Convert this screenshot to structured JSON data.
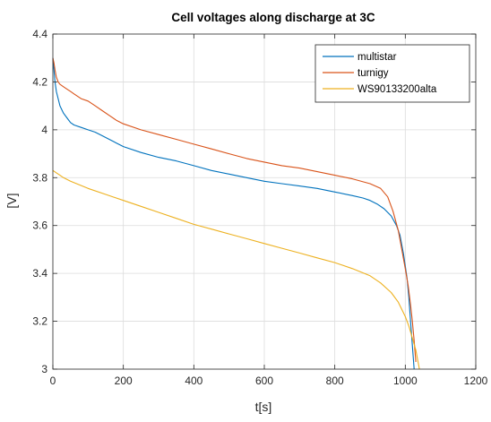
{
  "chart_data": {
    "type": "line",
    "title": "Cell voltages along discharge at 3C",
    "xlabel": "t[s]",
    "ylabel": "[V]",
    "xlim": [
      0,
      1200
    ],
    "ylim": [
      3,
      4.4
    ],
    "xticks": [
      0,
      200,
      400,
      600,
      800,
      1000,
      1200
    ],
    "yticks": [
      3,
      3.2,
      3.4,
      3.6,
      3.8,
      4,
      4.2,
      4.4
    ],
    "xtick_labels": [
      "0",
      "200",
      "400",
      "600",
      "800",
      "1000",
      "1200"
    ],
    "ytick_labels": [
      "3",
      "3.2",
      "3.4",
      "3.6",
      "3.8",
      "4",
      "4.2",
      "4.4"
    ],
    "grid": true,
    "legend_position": "top-right",
    "series": [
      {
        "name": "multistar",
        "color": "#0072BD",
        "x": [
          0,
          3,
          6,
          10,
          15,
          20,
          30,
          40,
          50,
          60,
          80,
          100,
          120,
          140,
          160,
          180,
          200,
          250,
          300,
          350,
          400,
          450,
          500,
          550,
          600,
          650,
          700,
          750,
          800,
          850,
          880,
          900,
          920,
          940,
          960,
          975,
          985,
          995,
          1005,
          1010,
          1015,
          1020,
          1025
        ],
        "y": [
          4.3,
          4.25,
          4.2,
          4.16,
          4.13,
          4.1,
          4.07,
          4.05,
          4.03,
          4.02,
          4.01,
          4.0,
          3.99,
          3.975,
          3.96,
          3.945,
          3.93,
          3.905,
          3.885,
          3.87,
          3.85,
          3.83,
          3.815,
          3.8,
          3.785,
          3.775,
          3.765,
          3.755,
          3.74,
          3.725,
          3.715,
          3.705,
          3.69,
          3.67,
          3.64,
          3.6,
          3.56,
          3.48,
          3.38,
          3.3,
          3.2,
          3.1,
          3.0
        ]
      },
      {
        "name": "turnigy",
        "color": "#D95319",
        "x": [
          0,
          3,
          6,
          10,
          15,
          20,
          30,
          40,
          50,
          60,
          80,
          100,
          120,
          140,
          160,
          180,
          200,
          250,
          300,
          350,
          400,
          450,
          500,
          550,
          600,
          650,
          700,
          750,
          800,
          850,
          900,
          930,
          950,
          965,
          980,
          990,
          1000,
          1008,
          1015,
          1020,
          1025,
          1030
        ],
        "y": [
          4.3,
          4.28,
          4.25,
          4.22,
          4.2,
          4.19,
          4.18,
          4.17,
          4.16,
          4.15,
          4.13,
          4.12,
          4.1,
          4.08,
          4.06,
          4.04,
          4.025,
          4.0,
          3.98,
          3.96,
          3.94,
          3.92,
          3.9,
          3.88,
          3.865,
          3.85,
          3.84,
          3.825,
          3.81,
          3.795,
          3.775,
          3.755,
          3.72,
          3.66,
          3.58,
          3.5,
          3.42,
          3.35,
          3.27,
          3.2,
          3.12,
          3.03
        ]
      },
      {
        "name": "WS90133200alta",
        "color": "#EDB120",
        "x": [
          0,
          5,
          10,
          20,
          30,
          50,
          100,
          150,
          200,
          250,
          300,
          350,
          400,
          450,
          500,
          550,
          600,
          650,
          700,
          750,
          800,
          850,
          900,
          930,
          960,
          980,
          1000,
          1010,
          1020,
          1030,
          1035,
          1040
        ],
        "y": [
          3.83,
          3.825,
          3.82,
          3.81,
          3.8,
          3.785,
          3.755,
          3.73,
          3.705,
          3.68,
          3.655,
          3.63,
          3.605,
          3.585,
          3.565,
          3.545,
          3.525,
          3.505,
          3.485,
          3.465,
          3.445,
          3.42,
          3.39,
          3.36,
          3.32,
          3.28,
          3.22,
          3.18,
          3.13,
          3.08,
          3.04,
          3.0
        ]
      }
    ]
  }
}
